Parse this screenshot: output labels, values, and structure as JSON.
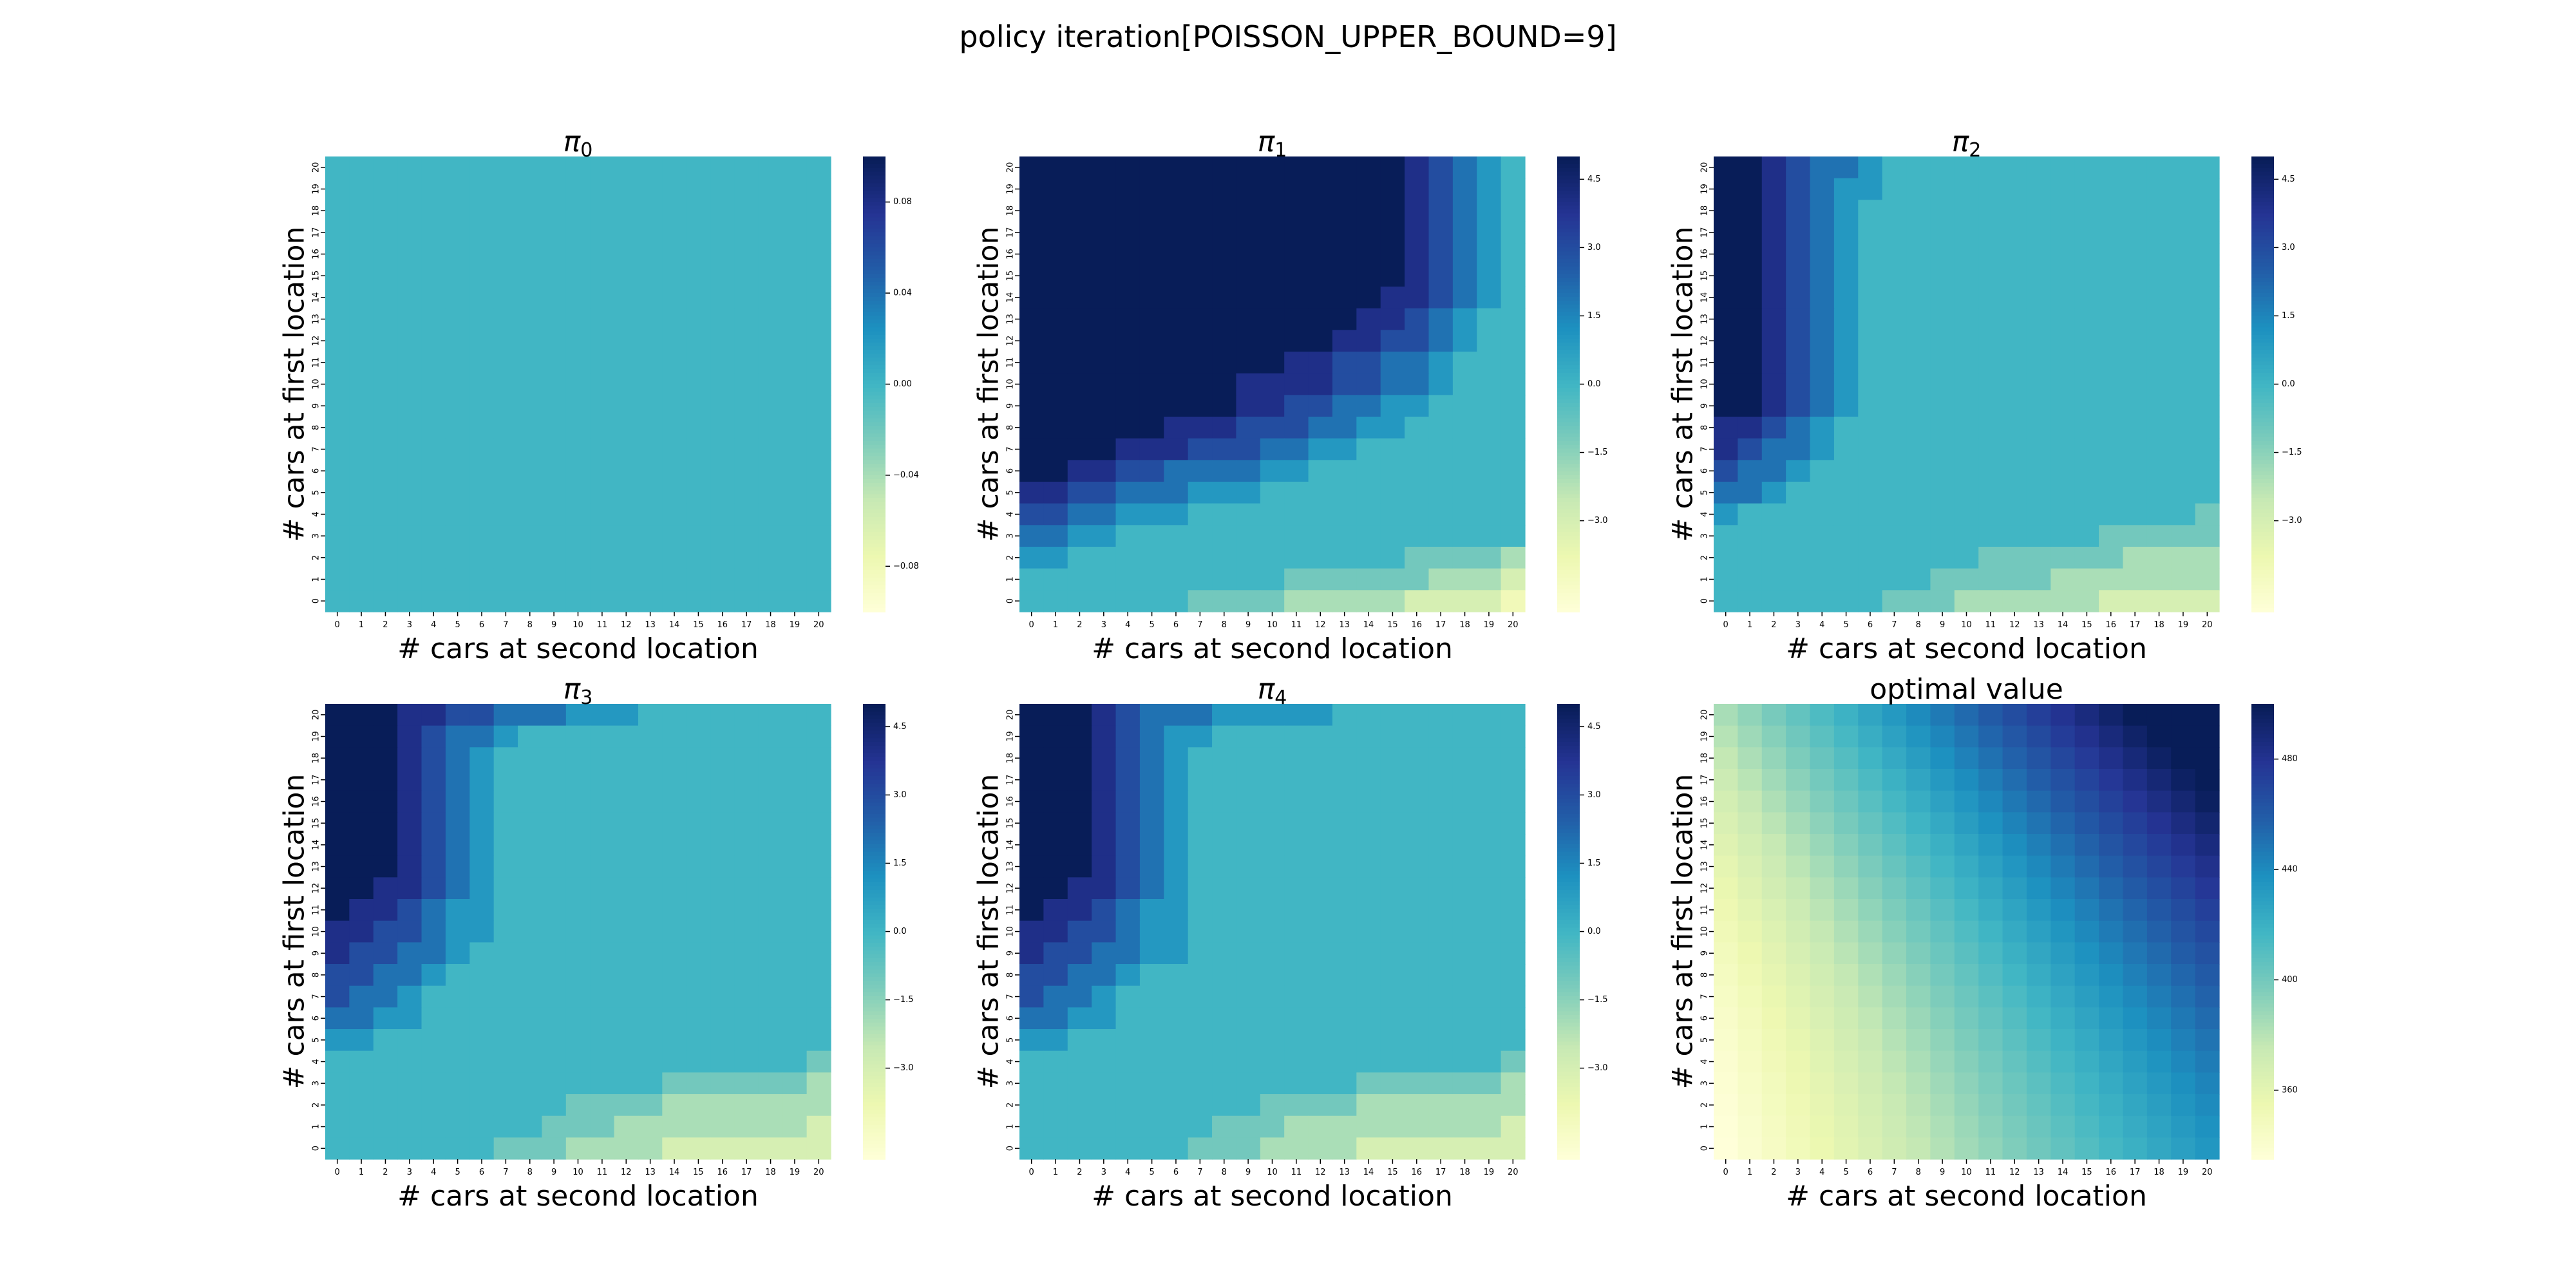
{
  "figure": {
    "suptitle": "policy iteration[POISSON_UPPER_BOUND=9]",
    "cmap": [
      "#ffffd9",
      "#edf8b1",
      "#c7e9b4",
      "#7fcdbb",
      "#41b6c4",
      "#1d91c0",
      "#225ea8",
      "#253494",
      "#081d58"
    ]
  },
  "chart_data": [
    {
      "type": "heatmap",
      "title_base": "π",
      "title_sub": "0",
      "xlabel": "# cars at second location",
      "ylabel": "# cars at first location",
      "x_ticks": [
        "0",
        "1",
        "2",
        "3",
        "4",
        "5",
        "6",
        "7",
        "8",
        "9",
        "10",
        "11",
        "12",
        "13",
        "14",
        "15",
        "16",
        "17",
        "18",
        "19",
        "20"
      ],
      "y_ticks": [
        "0",
        "1",
        "2",
        "3",
        "4",
        "5",
        "6",
        "7",
        "8",
        "9",
        "10",
        "11",
        "12",
        "13",
        "14",
        "15",
        "16",
        "17",
        "18",
        "19",
        "20"
      ],
      "vmin": -0.1,
      "vmax": 0.1,
      "colorbar_ticks": [
        "0.08",
        "0.04",
        "0.00",
        "−0.04",
        "−0.08"
      ],
      "colorbar_tick_values": [
        0.08,
        0.04,
        0.0,
        -0.04,
        -0.08
      ],
      "values_desc": "rows listed from first location = 20 (top) down to 0 (bottom), columns second location 0..20",
      "values": [
        "000000000000000000000",
        "000000000000000000000",
        "000000000000000000000",
        "000000000000000000000",
        "000000000000000000000",
        "000000000000000000000",
        "000000000000000000000",
        "000000000000000000000",
        "000000000000000000000",
        "000000000000000000000",
        "000000000000000000000",
        "000000000000000000000",
        "000000000000000000000",
        "000000000000000000000",
        "000000000000000000000",
        "000000000000000000000",
        "000000000000000000000",
        "000000000000000000000",
        "000000000000000000000",
        "000000000000000000000",
        "000000000000000000000"
      ]
    },
    {
      "type": "heatmap",
      "title_base": "π",
      "title_sub": "1",
      "xlabel": "# cars at second location",
      "ylabel": "# cars at first location",
      "x_ticks": [
        "0",
        "1",
        "2",
        "3",
        "4",
        "5",
        "6",
        "7",
        "8",
        "9",
        "10",
        "11",
        "12",
        "13",
        "14",
        "15",
        "16",
        "17",
        "18",
        "19",
        "20"
      ],
      "y_ticks": [
        "0",
        "1",
        "2",
        "3",
        "4",
        "5",
        "6",
        "7",
        "8",
        "9",
        "10",
        "11",
        "12",
        "13",
        "14",
        "15",
        "16",
        "17",
        "18",
        "19",
        "20"
      ],
      "vmin": -5,
      "vmax": 5,
      "colorbar_ticks": [
        "4.5",
        "3.0",
        "1.5",
        "0.0",
        "−1.5",
        "−3.0"
      ],
      "colorbar_tick_values": [
        4.5,
        3.0,
        1.5,
        0.0,
        -1.5,
        -3.0
      ],
      "values_desc": "action digits 0-9 encode -4..+5 (value = digit - 4); rows first location 20 (top) to 0",
      "values": [
        "999999999999999987654",
        "999999999999999987654",
        "999999999999999987654",
        "999999999999999987654",
        "999999999999999987654",
        "999999999999999987654",
        "999999999999999887654",
        "999999999999998876544",
        "999999999999988776544",
        "999999999998877665444",
        "999999999888877665444",
        "999999999887766554444",
        "999999888777665544444",
        "999988877766554444444",
        "998877666655444444444",
        "887766655544444444444",
        "776655544444444444444",
        "665544444444444444444",
        "554444444444444433332",
        "444444444443333332221",
        "444444433332222211110"
      ]
    },
    {
      "type": "heatmap",
      "title_base": "π",
      "title_sub": "2",
      "xlabel": "# cars at second location",
      "ylabel": "# cars at first location",
      "x_ticks": [
        "0",
        "1",
        "2",
        "3",
        "4",
        "5",
        "6",
        "7",
        "8",
        "9",
        "10",
        "11",
        "12",
        "13",
        "14",
        "15",
        "16",
        "17",
        "18",
        "19",
        "20"
      ],
      "y_ticks": [
        "0",
        "1",
        "2",
        "3",
        "4",
        "5",
        "6",
        "7",
        "8",
        "9",
        "10",
        "11",
        "12",
        "13",
        "14",
        "15",
        "16",
        "17",
        "18",
        "19",
        "20"
      ],
      "vmin": -5,
      "vmax": 5,
      "colorbar_ticks": [
        "4.5",
        "3.0",
        "1.5",
        "0.0",
        "−1.5",
        "−3.0"
      ],
      "colorbar_tick_values": [
        4.5,
        3.0,
        1.5,
        0.0,
        -1.5,
        -3.0
      ],
      "values_desc": "action digits 0-9 encode -4..+5 (value = digit - 4); rows first location 20 (top) to 0",
      "values": [
        "998766544444444444444",
        "998765544444444444444",
        "998765444444444444444",
        "998765444444444444444",
        "998765444444444444444",
        "998765444444444444444",
        "998765444444444444444",
        "998765444444444444444",
        "998765444444444444444",
        "998765444444444444444",
        "998765444444444444444",
        "998765444444444444444",
        "887654444444444444444",
        "876654444444444444444",
        "766544444444444444444",
        "665444444444444444444",
        "544444444444444444443",
        "444444444444444433333",
        "444444444443333332222",
        "444444444333332222222",
        "444444433322222211111"
      ]
    },
    {
      "type": "heatmap",
      "title_base": "π",
      "title_sub": "3",
      "xlabel": "# cars at second location",
      "ylabel": "# cars at first location",
      "x_ticks": [
        "0",
        "1",
        "2",
        "3",
        "4",
        "5",
        "6",
        "7",
        "8",
        "9",
        "10",
        "11",
        "12",
        "13",
        "14",
        "15",
        "16",
        "17",
        "18",
        "19",
        "20"
      ],
      "y_ticks": [
        "0",
        "1",
        "2",
        "3",
        "4",
        "5",
        "6",
        "7",
        "8",
        "9",
        "10",
        "11",
        "12",
        "13",
        "14",
        "15",
        "16",
        "17",
        "18",
        "19",
        "20"
      ],
      "vmin": -5,
      "vmax": 5,
      "colorbar_ticks": [
        "4.5",
        "3.0",
        "1.5",
        "0.0",
        "−1.5",
        "−3.0"
      ],
      "colorbar_tick_values": [
        4.5,
        3.0,
        1.5,
        0.0,
        -1.5,
        -3.0
      ],
      "values_desc": "action digits 0-9 encode -4..+5 (value = digit - 4); rows first location 20 (top) to 0",
      "values": [
        "999887766655544444444",
        "999876654444444444444",
        "999876544444444444444",
        "999876544444444444444",
        "999876544444444444444",
        "999876544444444444444",
        "999876544444444444444",
        "999876544444444444444",
        "998876544444444444444",
        "988765544444444444444",
        "887765544444444444444",
        "877665444444444444444",
        "776654444444444444444",
        "766544444444444444444",
        "665544444444444444444",
        "554444444444444444444",
        "444444444444444444443",
        "444444444444443333332",
        "444444444433332222222",
        "444444444333222222221",
        "444444433322221111111"
      ]
    },
    {
      "type": "heatmap",
      "title_base": "π",
      "title_sub": "4",
      "xlabel": "# cars at second location",
      "ylabel": "# cars at first location",
      "x_ticks": [
        "0",
        "1",
        "2",
        "3",
        "4",
        "5",
        "6",
        "7",
        "8",
        "9",
        "10",
        "11",
        "12",
        "13",
        "14",
        "15",
        "16",
        "17",
        "18",
        "19",
        "20"
      ],
      "y_ticks": [
        "0",
        "1",
        "2",
        "3",
        "4",
        "5",
        "6",
        "7",
        "8",
        "9",
        "10",
        "11",
        "12",
        "13",
        "14",
        "15",
        "16",
        "17",
        "18",
        "19",
        "20"
      ],
      "vmin": -5,
      "vmax": 5,
      "colorbar_ticks": [
        "4.5",
        "3.0",
        "1.5",
        "0.0",
        "−1.5",
        "−3.0"
      ],
      "colorbar_tick_values": [
        4.5,
        3.0,
        1.5,
        0.0,
        -1.5,
        -3.0
      ],
      "values_desc": "action digits 0-9 encode -4..+5 (value = digit - 4); rows first location 20 (top) to 0",
      "values": [
        "999876665555544444444",
        "999876554444444444444",
        "999876544444444444444",
        "999876544444444444444",
        "999876544444444444444",
        "999876544444444444444",
        "999876544444444444444",
        "999876544444444444444",
        "998876544444444444444",
        "988765544444444444444",
        "887765544444444444444",
        "877665544444444444444",
        "776654444444444444444",
        "766544444444444444444",
        "665544444444444444444",
        "554444444444444444444",
        "444444444444444444443",
        "444444444444443333332",
        "444444444433332222222",
        "444444443332222222221",
        "444444433322221111111"
      ]
    },
    {
      "type": "heatmap",
      "title_text": "optimal value",
      "xlabel": "# cars at second location",
      "ylabel": "# cars at first location",
      "x_ticks": [
        "0",
        "1",
        "2",
        "3",
        "4",
        "5",
        "6",
        "7",
        "8",
        "9",
        "10",
        "11",
        "12",
        "13",
        "14",
        "15",
        "16",
        "17",
        "18",
        "19",
        "20"
      ],
      "y_ticks": [
        "0",
        "1",
        "2",
        "3",
        "4",
        "5",
        "6",
        "7",
        "8",
        "9",
        "10",
        "11",
        "12",
        "13",
        "14",
        "15",
        "16",
        "17",
        "18",
        "19",
        "20"
      ],
      "vmin": 335,
      "vmax": 500,
      "colorbar_ticks": [
        "480",
        "440",
        "400",
        "360"
      ],
      "colorbar_tick_values": [
        480,
        440,
        400,
        360
      ],
      "formula": "approx. value increasing with both car counts, from about 335 at (0,0) to about 500 at (20,20)"
    }
  ]
}
